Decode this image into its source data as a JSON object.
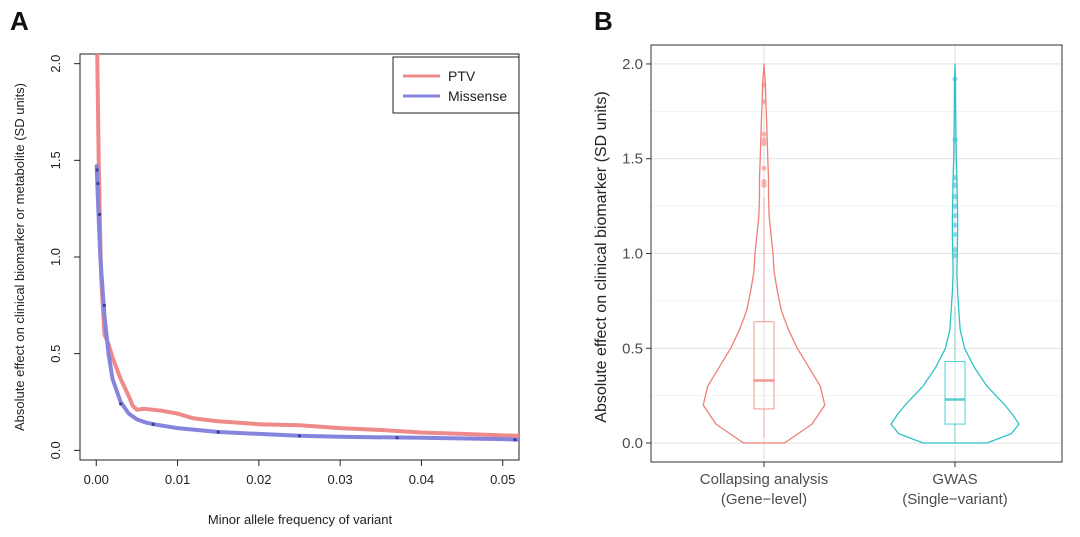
{
  "panels": {
    "a_label": "A",
    "b_label": "B"
  },
  "chart_data": [
    {
      "type": "line",
      "panel": "A",
      "xlabel": "Minor allele frequency of variant",
      "ylabel": "Absolute effect on clinical biomarker or metabolite (SD units)",
      "xlim": [
        -0.002,
        0.052
      ],
      "ylim": [
        -0.05,
        2.05
      ],
      "x_ticks": [
        "0.00",
        "0.01",
        "0.02",
        "0.03",
        "0.04",
        "0.05"
      ],
      "x_tick_values": [
        0,
        0.01,
        0.02,
        0.03,
        0.04,
        0.05
      ],
      "y_ticks": [
        "0.0",
        "0.5",
        "1.0",
        "1.5",
        "2.0"
      ],
      "y_tick_values": [
        0,
        0.5,
        1.0,
        1.5,
        2.0
      ],
      "grid": false,
      "legend_position": "top-right",
      "series": [
        {
          "name": "PTV",
          "color": "#ee8a8a",
          "x": [
            0.0001,
            0.0003,
            0.0006,
            0.001,
            0.0015,
            0.002,
            0.003,
            0.004,
            0.0045,
            0.005,
            0.006,
            0.008,
            0.01,
            0.012,
            0.015,
            0.02,
            0.025,
            0.03,
            0.035,
            0.04,
            0.045,
            0.05,
            0.052
          ],
          "y": [
            2.1,
            1.5,
            0.9,
            0.6,
            0.55,
            0.48,
            0.37,
            0.28,
            0.23,
            0.21,
            0.215,
            0.205,
            0.19,
            0.165,
            0.15,
            0.135,
            0.13,
            0.115,
            0.105,
            0.092,
            0.085,
            0.077,
            0.075
          ],
          "points": []
        },
        {
          "name": "Missense",
          "color": "#8585dd",
          "x": [
            5e-05,
            0.0002,
            0.0005,
            0.001,
            0.0015,
            0.002,
            0.003,
            0.004,
            0.005,
            0.006,
            0.007,
            0.01,
            0.015,
            0.02,
            0.025,
            0.03,
            0.04,
            0.05,
            0.052
          ],
          "y": [
            1.47,
            1.3,
            1.0,
            0.7,
            0.5,
            0.37,
            0.25,
            0.19,
            0.16,
            0.145,
            0.135,
            0.115,
            0.095,
            0.085,
            0.075,
            0.07,
            0.065,
            0.058,
            0.055
          ],
          "points": [
            {
              "x": 0.0001,
              "y": 1.45
            },
            {
              "x": 0.0002,
              "y": 1.38
            },
            {
              "x": 0.0004,
              "y": 1.22
            },
            {
              "x": 0.001,
              "y": 0.75
            },
            {
              "x": 0.003,
              "y": 0.24
            },
            {
              "x": 0.007,
              "y": 0.135
            },
            {
              "x": 0.015,
              "y": 0.095
            },
            {
              "x": 0.025,
              "y": 0.075
            },
            {
              "x": 0.037,
              "y": 0.065
            },
            {
              "x": 0.0515,
              "y": 0.055
            }
          ]
        }
      ]
    },
    {
      "type": "violin",
      "panel": "B",
      "ylabel": "Absolute effect on clinical biomarker (SD units)",
      "ylim": [
        -0.1,
        2.1
      ],
      "y_ticks": [
        "0.0",
        "0.5",
        "1.0",
        "1.5",
        "2.0"
      ],
      "y_tick_values": [
        0,
        0.5,
        1.0,
        1.5,
        2.0
      ],
      "grid": true,
      "categories": [
        {
          "line1": "Collapsing analysis",
          "line2": "(Gene−level)"
        },
        {
          "line1": "GWAS",
          "line2": "(Single−variant)"
        }
      ],
      "groups": [
        {
          "color": "#f07f77",
          "box": {
            "q1": 0.18,
            "median": 0.33,
            "q3": 0.64,
            "whisker_low": 0.03,
            "whisker_high": 1.3
          },
          "outliers": [
            1.36,
            1.38,
            1.45,
            1.58,
            1.6,
            1.63,
            1.8,
            1.89
          ],
          "density": [
            [
              0.0,
              0.32
            ],
            [
              0.1,
              0.75
            ],
            [
              0.2,
              0.95
            ],
            [
              0.3,
              0.88
            ],
            [
              0.4,
              0.7
            ],
            [
              0.5,
              0.52
            ],
            [
              0.6,
              0.38
            ],
            [
              0.7,
              0.27
            ],
            [
              0.8,
              0.21
            ],
            [
              0.9,
              0.16
            ],
            [
              1.0,
              0.14
            ],
            [
              1.1,
              0.11
            ],
            [
              1.2,
              0.08
            ],
            [
              1.3,
              0.07
            ],
            [
              1.4,
              0.07
            ],
            [
              1.5,
              0.06
            ],
            [
              1.6,
              0.05
            ],
            [
              1.7,
              0.04
            ],
            [
              1.8,
              0.03
            ],
            [
              1.9,
              0.02
            ],
            [
              2.0,
              0.0
            ]
          ]
        },
        {
          "color": "#2ec2c8",
          "box": {
            "q1": 0.1,
            "median": 0.23,
            "q3": 0.43,
            "whisker_low": 0.0,
            "whisker_high": 0.72
          },
          "outliers": [
            0.99,
            1.02,
            1.1,
            1.15,
            1.2,
            1.25,
            1.3,
            1.36,
            1.4,
            1.6,
            1.92
          ],
          "density": [
            [
              0.0,
              0.5
            ],
            [
              0.05,
              0.88
            ],
            [
              0.1,
              1.0
            ],
            [
              0.15,
              0.9
            ],
            [
              0.2,
              0.78
            ],
            [
              0.3,
              0.5
            ],
            [
              0.4,
              0.3
            ],
            [
              0.5,
              0.15
            ],
            [
              0.6,
              0.08
            ],
            [
              0.7,
              0.06
            ],
            [
              0.8,
              0.04
            ],
            [
              0.9,
              0.03
            ],
            [
              1.0,
              0.035
            ],
            [
              1.1,
              0.04
            ],
            [
              1.2,
              0.04
            ],
            [
              1.3,
              0.035
            ],
            [
              1.4,
              0.03
            ],
            [
              1.5,
              0.02
            ],
            [
              1.6,
              0.015
            ],
            [
              1.7,
              0.012
            ],
            [
              1.8,
              0.01
            ],
            [
              1.9,
              0.008
            ],
            [
              2.0,
              0.0
            ]
          ]
        }
      ]
    }
  ]
}
